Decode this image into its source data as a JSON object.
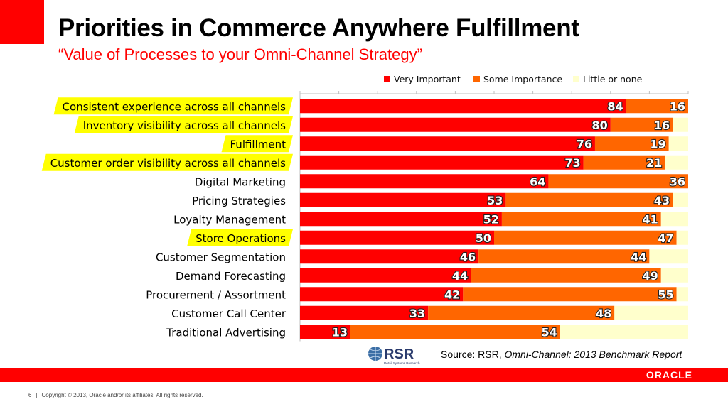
{
  "slide": {
    "title": "Priorities in Commerce Anywhere Fulfillment",
    "subtitle": "“Value of Processes to your Omni-Channel Strategy”",
    "source_prefix": "Source: RSR, ",
    "source_italic": "Omni-Channel: 2013 Benchmark Report",
    "logo_text": "RSR",
    "logo_subtext": "Retail Systems Research",
    "brand": "ORACLE",
    "page_number": "6",
    "copyright": "Copyright © 2013, Oracle and/or its affiliates. All rights reserved."
  },
  "colors": {
    "very_important": "#ff0000",
    "some_importance": "#ff6600",
    "little_or_none": "#ffffcc",
    "highlight": "#ffff00"
  },
  "chart_data": {
    "type": "bar",
    "orientation": "horizontal",
    "stacked": true,
    "xlim": [
      0,
      100
    ],
    "grid": false,
    "legend_position": "top",
    "categories": [
      "Consistent experience across all channels",
      "Inventory visibility across all channels",
      "Fulfillment",
      "Customer order visibility across all channels",
      "Digital Marketing",
      "Pricing Strategies",
      "Loyalty Management",
      "Store Operations",
      "Customer Segmentation",
      "Demand Forecasting",
      "Procurement / Assortment",
      "Customer Call Center",
      "Traditional Advertising"
    ],
    "highlighted": [
      true,
      true,
      true,
      true,
      false,
      false,
      false,
      true,
      false,
      false,
      false,
      false,
      false
    ],
    "series": [
      {
        "name": "Very Important",
        "values": [
          84,
          80,
          76,
          73,
          64,
          53,
          52,
          50,
          46,
          44,
          42,
          33,
          13
        ]
      },
      {
        "name": "Some Importance",
        "values": [
          16,
          16,
          19,
          21,
          36,
          43,
          41,
          47,
          44,
          49,
          55,
          48,
          54
        ]
      },
      {
        "name": "Little or none",
        "values": [
          0,
          4,
          5,
          6,
          0,
          4,
          7,
          3,
          10,
          7,
          3,
          19,
          33
        ]
      }
    ]
  }
}
